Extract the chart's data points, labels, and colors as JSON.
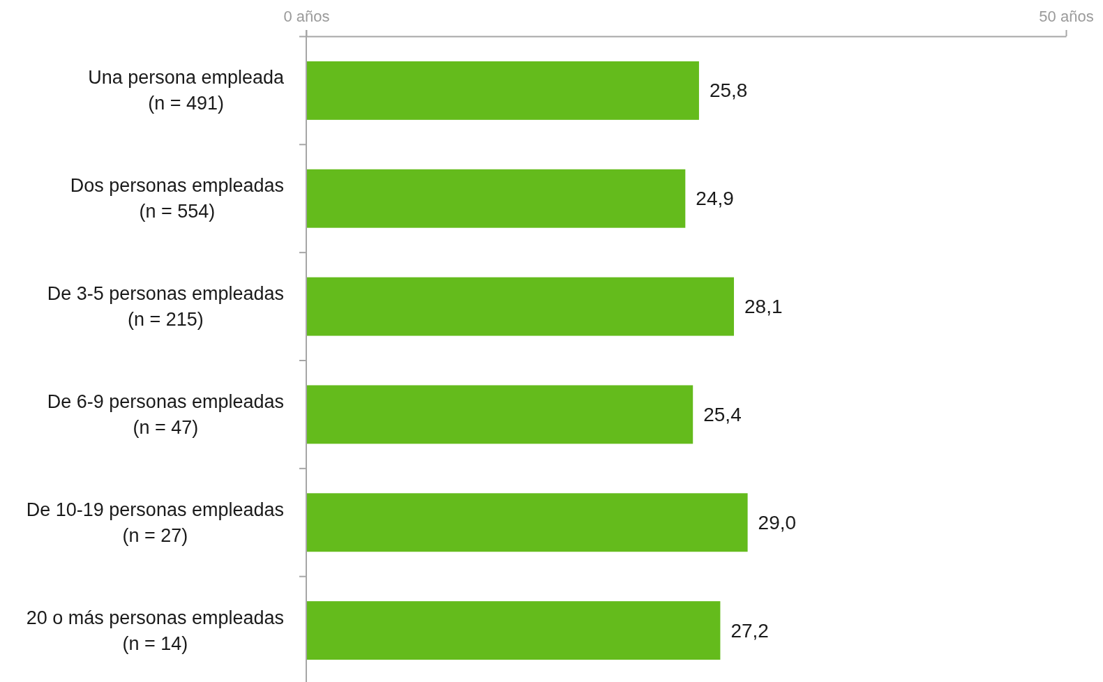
{
  "chart_data": {
    "type": "bar",
    "orientation": "horizontal",
    "categories": [
      "Una persona empleada\n(n = 491)",
      "Dos personas empleadas\n(n = 554)",
      "De 3-5 personas empleadas\n(n = 215)",
      "De 6-9 personas empleadas\n(n = 47)",
      "De 10-19 personas empleadas\n(n = 27)",
      "20 o más personas empleadas\n(n = 14)"
    ],
    "values": [
      25.8,
      24.9,
      28.1,
      25.4,
      29.0,
      27.2
    ],
    "color": "#64bb1c",
    "xlim": [
      0,
      50
    ],
    "xticks": [
      {
        "value": 0,
        "label": "0 años"
      },
      {
        "value": 50,
        "label": "50 años"
      }
    ],
    "value_labels": [
      "25,8",
      "24,9",
      "28,1",
      "25,4",
      "29,0",
      "27,2"
    ]
  }
}
